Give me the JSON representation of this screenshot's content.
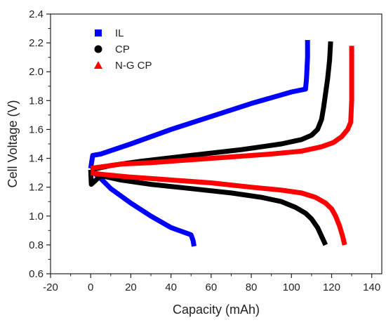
{
  "chart_data": {
    "type": "line",
    "title": "",
    "xlabel": "Capacity (mAh)",
    "ylabel": "Cell Voltage (V)",
    "xlim": [
      -20,
      145
    ],
    "ylim": [
      0.6,
      2.4
    ],
    "xticks": [
      -20,
      0,
      20,
      40,
      60,
      80,
      100,
      120,
      140
    ],
    "yticks": [
      0.6,
      0.8,
      1.0,
      1.2,
      1.4,
      1.6,
      1.8,
      2.0,
      2.2,
      2.4
    ],
    "xtick_labels": [
      "-20",
      "0",
      "20",
      "40",
      "60",
      "80",
      "100",
      "120",
      "140"
    ],
    "ytick_labels": [
      "0.6",
      "0.8",
      "1.0",
      "1.2",
      "1.4",
      "1.6",
      "1.8",
      "2.0",
      "2.2",
      "2.4"
    ],
    "grid": false,
    "legend_position": "top-left",
    "series": [
      {
        "name": "IL",
        "color": "#0000ff",
        "marker": "square",
        "charge": {
          "x": [
            0,
            1,
            5,
            20,
            40,
            60,
            80,
            100,
            107,
            107.5,
            108,
            108
          ],
          "y": [
            1.33,
            1.42,
            1.43,
            1.5,
            1.6,
            1.69,
            1.78,
            1.86,
            1.88,
            1.95,
            2.1,
            2.22
          ]
        },
        "discharge": {
          "x": [
            0,
            5,
            10,
            20,
            30,
            40,
            48,
            50,
            51,
            51.5
          ],
          "y": [
            1.32,
            1.26,
            1.19,
            1.09,
            1.0,
            0.92,
            0.88,
            0.87,
            0.83,
            0.79
          ]
        }
      },
      {
        "name": "CP",
        "color": "#000000",
        "marker": "circle",
        "charge": {
          "x": [
            0,
            10,
            25,
            50,
            75,
            95,
            105,
            110,
            113,
            115,
            116,
            117,
            118,
            119,
            119.5
          ],
          "y": [
            1.32,
            1.35,
            1.38,
            1.42,
            1.46,
            1.5,
            1.53,
            1.56,
            1.6,
            1.67,
            1.75,
            1.85,
            1.95,
            2.08,
            2.21
          ]
        },
        "discharge": {
          "x": [
            0,
            0.3,
            5,
            15,
            30,
            50,
            70,
            85,
            95,
            102,
            107,
            110,
            113,
            115,
            117
          ],
          "y": [
            1.32,
            1.22,
            1.28,
            1.25,
            1.22,
            1.19,
            1.16,
            1.13,
            1.1,
            1.06,
            1.02,
            0.98,
            0.92,
            0.86,
            0.8
          ]
        }
      },
      {
        "name": "N-G CP",
        "color": "#ff0000",
        "marker": "triangle",
        "charge": {
          "x": [
            0,
            5,
            15,
            30,
            50,
            70,
            90,
            105,
            115,
            121,
            125,
            128,
            129.5,
            130,
            130,
            130
          ],
          "y": [
            1.33,
            1.34,
            1.36,
            1.37,
            1.39,
            1.41,
            1.43,
            1.45,
            1.48,
            1.51,
            1.55,
            1.6,
            1.65,
            1.8,
            2.0,
            2.18
          ]
        },
        "discharge": {
          "x": [
            0,
            5,
            20,
            40,
            60,
            80,
            95,
            105,
            112,
            117,
            120,
            122,
            124,
            125.5,
            126.5
          ],
          "y": [
            1.3,
            1.29,
            1.27,
            1.25,
            1.23,
            1.2,
            1.18,
            1.16,
            1.13,
            1.09,
            1.05,
            1.0,
            0.93,
            0.86,
            0.8
          ]
        }
      }
    ]
  }
}
